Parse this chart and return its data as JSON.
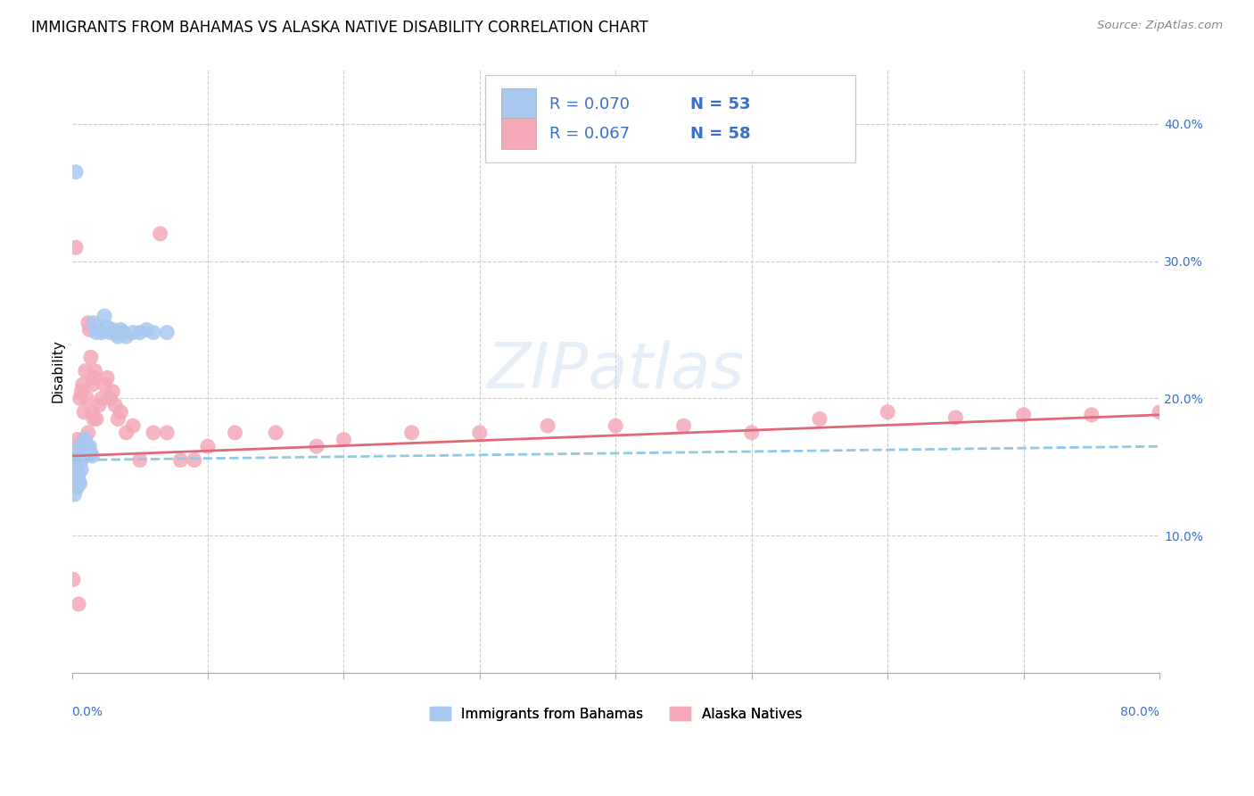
{
  "title": "IMMIGRANTS FROM BAHAMAS VS ALASKA NATIVE DISABILITY CORRELATION CHART",
  "source": "Source: ZipAtlas.com",
  "ylabel": "Disability",
  "xlim": [
    0.0,
    0.8
  ],
  "ylim": [
    0.0,
    0.44
  ],
  "color_blue": "#A8C8F0",
  "color_pink": "#F4A8B8",
  "color_line_blue": "#B0D8F0",
  "color_line_pink": "#E06878",
  "color_blue_solid": "#3B6FCC",
  "color_text_blue": "#3B6FCC",
  "watermark": "ZIPatlas",
  "blue_trend_start_y": 0.155,
  "blue_trend_end_y": 0.165,
  "pink_trend_start_y": 0.158,
  "pink_trend_end_y": 0.188,
  "blue_x": [
    0.001,
    0.001,
    0.002,
    0.002,
    0.002,
    0.003,
    0.003,
    0.003,
    0.003,
    0.004,
    0.004,
    0.004,
    0.005,
    0.005,
    0.005,
    0.005,
    0.005,
    0.006,
    0.006,
    0.006,
    0.007,
    0.007,
    0.007,
    0.008,
    0.008,
    0.009,
    0.009,
    0.01,
    0.01,
    0.011,
    0.012,
    0.013,
    0.014,
    0.015,
    0.016,
    0.018,
    0.02,
    0.022,
    0.024,
    0.026,
    0.028,
    0.03,
    0.032,
    0.034,
    0.036,
    0.038,
    0.04,
    0.045,
    0.05,
    0.055,
    0.06,
    0.07,
    0.003
  ],
  "blue_y": [
    0.145,
    0.14,
    0.148,
    0.152,
    0.13,
    0.15,
    0.148,
    0.145,
    0.14,
    0.155,
    0.15,
    0.135,
    0.16,
    0.158,
    0.155,
    0.145,
    0.14,
    0.165,
    0.162,
    0.138,
    0.158,
    0.155,
    0.148,
    0.165,
    0.16,
    0.168,
    0.165,
    0.17,
    0.162,
    0.165,
    0.162,
    0.165,
    0.16,
    0.158,
    0.255,
    0.248,
    0.25,
    0.248,
    0.26,
    0.252,
    0.248,
    0.25,
    0.248,
    0.245,
    0.25,
    0.248,
    0.245,
    0.248,
    0.248,
    0.25,
    0.248,
    0.248,
    0.365
  ],
  "pink_x": [
    0.001,
    0.003,
    0.004,
    0.005,
    0.006,
    0.006,
    0.007,
    0.007,
    0.008,
    0.009,
    0.009,
    0.01,
    0.011,
    0.012,
    0.012,
    0.013,
    0.014,
    0.015,
    0.015,
    0.016,
    0.016,
    0.017,
    0.018,
    0.02,
    0.022,
    0.024,
    0.026,
    0.028,
    0.03,
    0.032,
    0.034,
    0.036,
    0.04,
    0.045,
    0.05,
    0.06,
    0.065,
    0.07,
    0.08,
    0.09,
    0.1,
    0.12,
    0.15,
    0.18,
    0.2,
    0.25,
    0.3,
    0.35,
    0.4,
    0.45,
    0.5,
    0.55,
    0.6,
    0.65,
    0.7,
    0.75,
    0.8,
    0.005
  ],
  "pink_y": [
    0.068,
    0.31,
    0.17,
    0.165,
    0.2,
    0.165,
    0.205,
    0.155,
    0.21,
    0.19,
    0.17,
    0.22,
    0.2,
    0.255,
    0.175,
    0.25,
    0.23,
    0.21,
    0.19,
    0.215,
    0.185,
    0.22,
    0.185,
    0.195,
    0.2,
    0.21,
    0.215,
    0.2,
    0.205,
    0.195,
    0.185,
    0.19,
    0.175,
    0.18,
    0.155,
    0.175,
    0.32,
    0.175,
    0.155,
    0.155,
    0.165,
    0.175,
    0.175,
    0.165,
    0.17,
    0.175,
    0.175,
    0.18,
    0.18,
    0.18,
    0.175,
    0.185,
    0.19,
    0.186,
    0.188,
    0.188,
    0.19,
    0.05
  ]
}
